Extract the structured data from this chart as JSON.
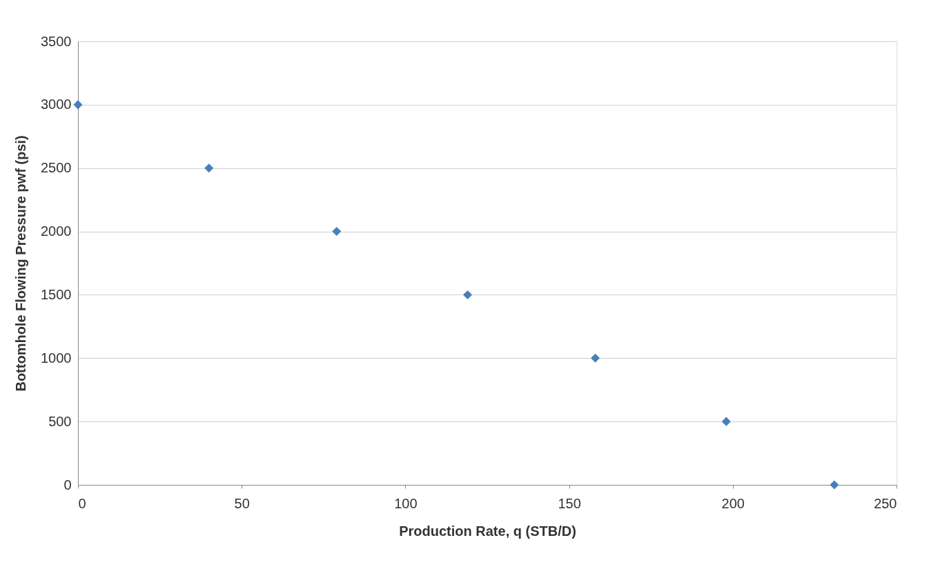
{
  "chart_data": {
    "type": "scatter",
    "xlabel": "Production Rate, q (STB/D)",
    "ylabel": "Bottomhole Flowing Pressure pwf (psi)",
    "x": [
      0,
      40,
      79,
      119,
      158,
      198,
      231
    ],
    "series": [
      {
        "color": "#4a7ebb",
        "values": [
          3000,
          2500,
          2000,
          1500,
          1000,
          500,
          0
        ]
      }
    ],
    "xlim": [
      0,
      250
    ],
    "xticks": [
      0,
      50,
      100,
      150,
      200,
      250
    ],
    "ylim": [
      0,
      3500
    ],
    "yticks": [
      0,
      500,
      1000,
      1500,
      2000,
      2500,
      3000,
      3500
    ],
    "grid": "y",
    "marker": "diamond"
  }
}
